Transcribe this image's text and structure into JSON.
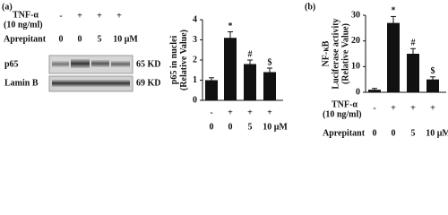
{
  "blot": {
    "panel": "(a)",
    "tnf_label": "TNF-α",
    "tnf_sub": "(10 ng/ml)",
    "tnf": [
      "-",
      "+",
      "+",
      "+"
    ],
    "aprepitant_label": "Aprepitant",
    "aprepitant": [
      "0",
      "0",
      "5",
      "10 μM"
    ],
    "bands": [
      {
        "name": "p65",
        "size": "65 KD"
      },
      {
        "name": "Lamin B",
        "size": "69 KD"
      }
    ]
  },
  "chart_data": [
    {
      "type": "bar",
      "ylabel": [
        "p65 in nuclei",
        "(Relative Value)"
      ],
      "tnf": [
        "-",
        "+",
        "+",
        "+"
      ],
      "categories": [
        "0",
        "0",
        "5",
        "10 μM"
      ],
      "values": [
        1.0,
        3.1,
        1.8,
        1.4
      ],
      "errors": [
        0.12,
        0.3,
        0.2,
        0.2
      ],
      "annotations": [
        null,
        "*",
        "#",
        "$"
      ],
      "color": "#111111",
      "ylim": [
        0,
        4
      ],
      "yticks": [
        0,
        1,
        2,
        3,
        4
      ]
    },
    {
      "type": "bar",
      "panel": "(b)",
      "ylabel": [
        "NF-κB",
        "Luciferase activity",
        "(Relative Value)"
      ],
      "tnf_label": "TNF-α",
      "tnf_sub": "(10 ng/ml)",
      "aprepitant_label": "Aprepitant",
      "tnf": [
        "-",
        "+",
        "+",
        "+"
      ],
      "categories": [
        "0",
        "0",
        "5",
        "10 μM"
      ],
      "values": [
        1,
        27,
        15,
        5
      ],
      "errors": [
        0.5,
        2.5,
        2,
        1
      ],
      "annotations": [
        null,
        "*",
        "#",
        "$"
      ],
      "color": "#111111",
      "ylim": [
        0,
        30
      ],
      "yticks": [
        0,
        10,
        20,
        30
      ]
    }
  ]
}
